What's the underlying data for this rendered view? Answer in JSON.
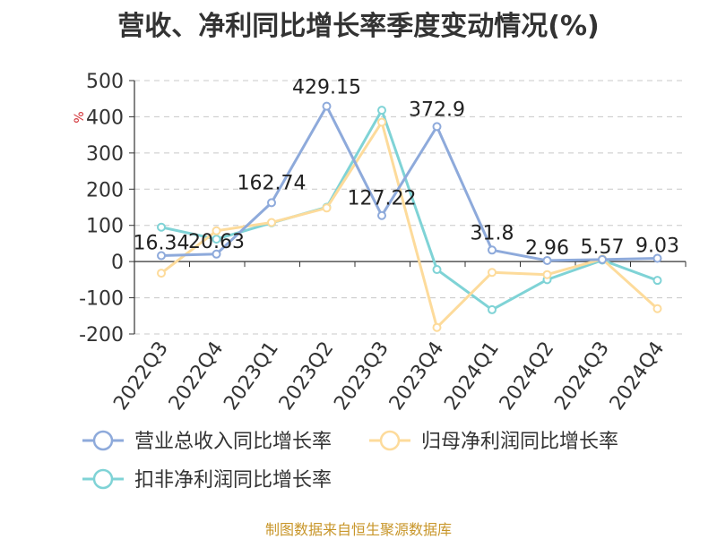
{
  "chart_data": {
    "type": "line",
    "title": "营收、净利同比增长率季度变动情况(%)",
    "ylabel": "%",
    "xlabel": "",
    "categories": [
      "2022Q3",
      "2022Q4",
      "2023Q1",
      "2023Q2",
      "2023Q3",
      "2023Q4",
      "2024Q1",
      "2024Q2",
      "2024Q3",
      "2024Q4"
    ],
    "ylim": [
      -200,
      500
    ],
    "yticks": [
      "500",
      "400",
      "300",
      "200",
      "100",
      "0",
      "-100",
      "-200"
    ],
    "grid": true,
    "legend_position": "bottom",
    "series": [
      {
        "name": "营业总收入同比增长率",
        "color": "#8eaadb",
        "values": [
          16.34,
          20.63,
          162.74,
          429.15,
          127.22,
          372.9,
          31.8,
          2.96,
          5.57,
          9.03
        ],
        "labels": [
          "16.34",
          "20.63",
          "162.74",
          "429.15",
          "127.22",
          "372.9",
          "31.8",
          "2.96",
          "5.57",
          "9.03"
        ]
      },
      {
        "name": "归母净利润同比增长率",
        "color": "#fddb9b",
        "values": [
          -32,
          85,
          108,
          148,
          385,
          -182,
          -30,
          -36,
          7,
          -130
        ]
      },
      {
        "name": "扣非净利润同比增长率",
        "color": "#7fd3d6",
        "values": [
          95,
          62,
          107,
          150,
          418,
          -22,
          -133,
          -50,
          4,
          -52
        ]
      }
    ]
  },
  "source": "制图数据来自恒生聚源数据库"
}
